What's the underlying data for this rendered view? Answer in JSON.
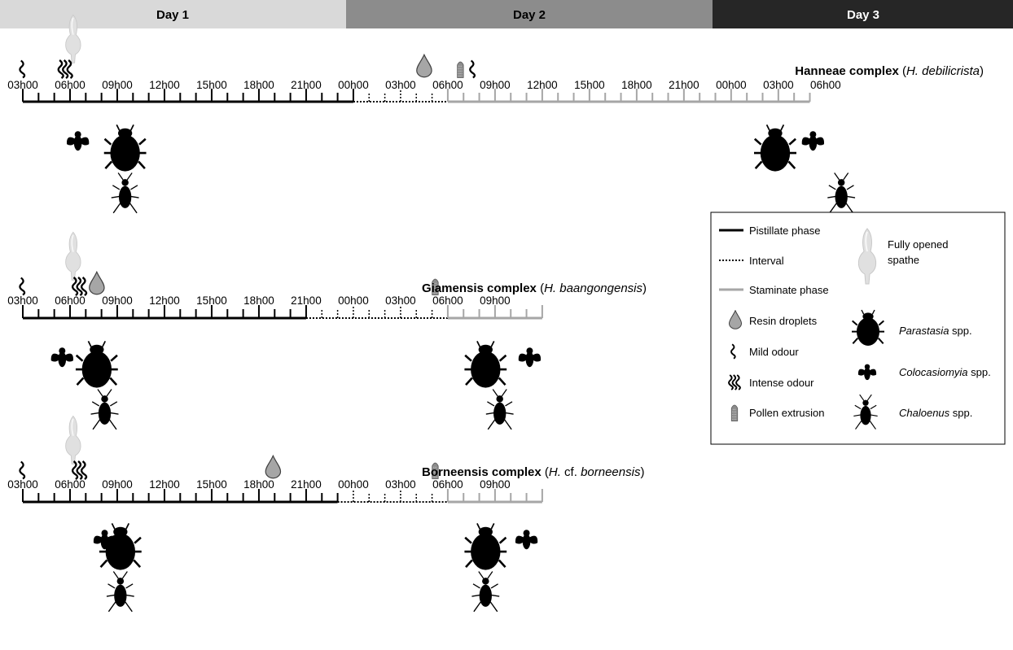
{
  "days": [
    {
      "label": "Day 1",
      "color": "#d9d9d9",
      "text_color": "#000000"
    },
    {
      "label": "Day 2",
      "color": "#8c8c8c",
      "text_color": "#000000"
    },
    {
      "label": "Day 3",
      "color": "#262626",
      "text_color": "#ffffff"
    }
  ],
  "colors": {
    "pistillate": "#000000",
    "interval": "#000000",
    "staminate": "#a6a6a6",
    "resin": "#a6a6a6",
    "insect": "#000000",
    "spathe": "#dcdcdc",
    "pollen": "#8c8c8c"
  },
  "rows": [
    {
      "title_bold": "Hanneae complex",
      "title_open": " (",
      "title_italic": "H. debilicrista",
      "title_close": ")",
      "ticks": [
        "03h00",
        "06h00",
        "09h00",
        "12h00",
        "15h00",
        "18h00",
        "21h00",
        "00h00",
        "03h00",
        "06h00",
        "09h00",
        "12h00",
        "15h00",
        "18h00",
        "21h00",
        "00h00",
        "03h00",
        "06h00"
      ],
      "phases": {
        "pistillate_end_h": 21,
        "interval_end_h": 27,
        "staminate_end_h": 50
      },
      "events": [
        {
          "type": "mild-odour",
          "h": 0
        },
        {
          "type": "spathe",
          "h": 3.2
        },
        {
          "type": "intense-odour",
          "h": 2.7
        },
        {
          "type": "resin",
          "h": 25.5
        },
        {
          "type": "pollen",
          "h": 27.8
        },
        {
          "type": "mild-odour",
          "h": 28.6
        }
      ],
      "insects": [
        {
          "type": "colocasiomyia",
          "h": 3.5
        },
        {
          "type": "parastasia",
          "h": 6.5
        },
        {
          "type": "chaloenus",
          "h": 6.5
        },
        {
          "type": "parastasia",
          "h": 47.8
        },
        {
          "type": "colocasiomyia",
          "h": 50.2
        },
        {
          "type": "chaloenus",
          "h": 52
        }
      ]
    },
    {
      "title_bold": "Giamensis complex",
      "title_open": " (",
      "title_italic": "H. baangongensis",
      "title_close": ")",
      "ticks": [
        "03h00",
        "06h00",
        "09h00",
        "12h00",
        "15h00",
        "18h00",
        "21h00",
        "00h00",
        "03h00",
        "06h00",
        "09h00"
      ],
      "phases": {
        "pistillate_end_h": 18,
        "interval_end_h": 27,
        "staminate_end_h": 33
      },
      "events": [
        {
          "type": "mild-odour",
          "h": 0
        },
        {
          "type": "spathe",
          "h": 3.2
        },
        {
          "type": "intense-odour",
          "h": 3.6
        },
        {
          "type": "resin",
          "h": 4.7
        },
        {
          "type": "pollen",
          "h": 26.2
        }
      ],
      "insects": [
        {
          "type": "colocasiomyia",
          "h": 2.5
        },
        {
          "type": "parastasia",
          "h": 4.7
        },
        {
          "type": "chaloenus",
          "h": 5.2
        },
        {
          "type": "parastasia",
          "h": 29.4
        },
        {
          "type": "colocasiomyia",
          "h": 32.2
        },
        {
          "type": "chaloenus",
          "h": 30.3
        }
      ]
    },
    {
      "title_bold": "Borneensis complex",
      "title_open": " (",
      "title_italic": "",
      "title_plain": "H.",
      "title_mid": " cf. ",
      "title_italic2": "borneensis",
      "title_close": ")",
      "ticks": [
        "03h00",
        "06h00",
        "09h00",
        "12h00",
        "15h00",
        "18h00",
        "21h00",
        "00h00",
        "03h00",
        "06h00",
        "09h00"
      ],
      "phases": {
        "pistillate_end_h": 20,
        "interval_end_h": 27,
        "staminate_end_h": 33
      },
      "events": [
        {
          "type": "mild-odour",
          "h": 0
        },
        {
          "type": "spathe",
          "h": 3.2
        },
        {
          "type": "intense-odour",
          "h": 3.6
        },
        {
          "type": "resin",
          "h": 15.9
        },
        {
          "type": "pollen",
          "h": 26.2
        }
      ],
      "insects": [
        {
          "type": "colocasiomyia",
          "h": 5.2
        },
        {
          "type": "parastasia",
          "h": 6.2
        },
        {
          "type": "chaloenus",
          "h": 6.2
        },
        {
          "type": "parastasia",
          "h": 29.4
        },
        {
          "type": "colocasiomyia",
          "h": 32
        },
        {
          "type": "chaloenus",
          "h": 29.4
        }
      ]
    }
  ],
  "legend": {
    "items_left": [
      {
        "icon": "pistillate-line",
        "label": "Pistillate phase"
      },
      {
        "icon": "interval-line",
        "label": "Interval"
      },
      {
        "icon": "staminate-line",
        "label": "Staminate phase"
      },
      {
        "icon": "resin-icon",
        "label": "Resin droplets"
      },
      {
        "icon": "mild-odour-icon",
        "label": "Mild odour"
      },
      {
        "icon": "intense-odour-icon",
        "label": "Intense odour"
      },
      {
        "icon": "pollen-icon",
        "label": "Pollen extrusion"
      }
    ],
    "spathe_label_1": "Fully opened",
    "spathe_label_2": "spathe",
    "insect_items": [
      {
        "icon": "parastasia-icon",
        "italic": "Parastasia",
        "suffix": " spp."
      },
      {
        "icon": "colocasiomyia-icon",
        "italic": "Colocasiomyia",
        "suffix": " spp."
      },
      {
        "icon": "chaloenus-icon",
        "italic": "Chaloenus",
        "suffix": " spp."
      }
    ]
  }
}
